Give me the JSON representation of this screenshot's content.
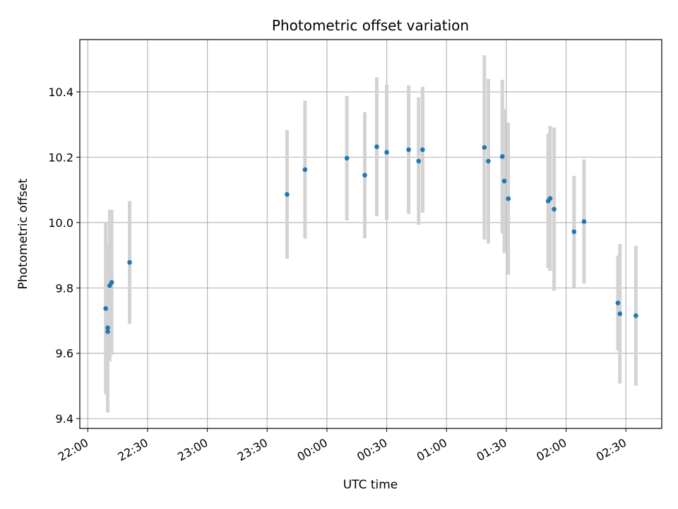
{
  "chart_data": {
    "type": "scatter",
    "title": "Photometric offset variation",
    "xlabel": "UTC time",
    "ylabel": "Photometric offset",
    "x_tick_labels": [
      "22:00",
      "22:30",
      "23:00",
      "23:30",
      "00:00",
      "00:30",
      "01:00",
      "01:30",
      "02:00",
      "02:30"
    ],
    "x_ticks_min_from_2200": [
      0,
      30,
      60,
      90,
      120,
      150,
      180,
      210,
      240,
      270
    ],
    "y_tick_labels": [
      "9.4",
      "9.6",
      "9.8",
      "10.0",
      "10.2",
      "10.4"
    ],
    "y_ticks": [
      9.4,
      9.6,
      9.8,
      10.0,
      10.2,
      10.4
    ],
    "xlim_min_from_2200": [
      -4,
      288
    ],
    "ylim": [
      9.37,
      10.56
    ],
    "grid": true,
    "colors": {
      "point": "#1f77b4",
      "errorbar": "#d3d3d3",
      "grid": "#b0b0b0"
    },
    "points": [
      {
        "t": "22:09",
        "y": 9.737,
        "err": 0.262
      },
      {
        "t": "22:10",
        "y": 9.666,
        "err": 0.247
      },
      {
        "t": "22:10",
        "y": 9.678,
        "err": 0.258
      },
      {
        "t": "22:11",
        "y": 9.807,
        "err": 0.232
      },
      {
        "t": "22:12",
        "y": 9.817,
        "err": 0.222
      },
      {
        "t": "22:21",
        "y": 9.878,
        "err": 0.188
      },
      {
        "t": "23:40",
        "y": 10.086,
        "err": 0.197
      },
      {
        "t": "23:49",
        "y": 10.162,
        "err": 0.211
      },
      {
        "t": "00:10",
        "y": 10.197,
        "err": 0.191
      },
      {
        "t": "00:19",
        "y": 10.145,
        "err": 0.193
      },
      {
        "t": "00:25",
        "y": 10.232,
        "err": 0.213
      },
      {
        "t": "00:30",
        "y": 10.215,
        "err": 0.207
      },
      {
        "t": "00:41",
        "y": 10.223,
        "err": 0.197
      },
      {
        "t": "00:46",
        "y": 10.188,
        "err": 0.195
      },
      {
        "t": "00:48",
        "y": 10.223,
        "err": 0.193
      },
      {
        "t": "01:19",
        "y": 10.23,
        "err": 0.282
      },
      {
        "t": "01:21",
        "y": 10.188,
        "err": 0.252
      },
      {
        "t": "01:28",
        "y": 10.202,
        "err": 0.235
      },
      {
        "t": "01:29",
        "y": 10.127,
        "err": 0.22
      },
      {
        "t": "01:31",
        "y": 10.073,
        "err": 0.233
      },
      {
        "t": "01:51",
        "y": 10.066,
        "err": 0.206
      },
      {
        "t": "01:52",
        "y": 10.074,
        "err": 0.222
      },
      {
        "t": "01:54",
        "y": 10.041,
        "err": 0.25
      },
      {
        "t": "02:04",
        "y": 9.972,
        "err": 0.171
      },
      {
        "t": "02:09",
        "y": 10.003,
        "err": 0.19
      },
      {
        "t": "02:26",
        "y": 9.754,
        "err": 0.145
      },
      {
        "t": "02:27",
        "y": 9.721,
        "err": 0.214
      },
      {
        "t": "02:35",
        "y": 9.715,
        "err": 0.214
      }
    ]
  }
}
